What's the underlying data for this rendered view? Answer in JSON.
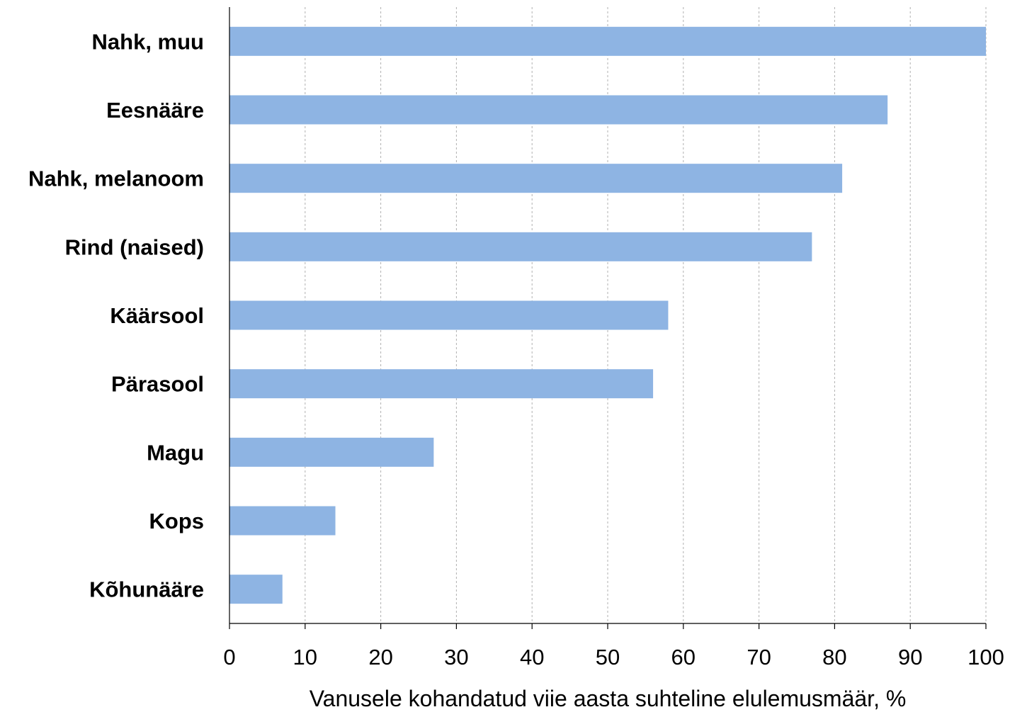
{
  "chart_data": {
    "type": "bar",
    "orientation": "horizontal",
    "categories": [
      "Nahk, muu",
      "Eesnääre",
      "Nahk, melanoom",
      "Rind (naised)",
      "Käärsool",
      "Pärasool",
      "Magu",
      "Kops",
      "Kõhunääre"
    ],
    "values": [
      100,
      87,
      81,
      77,
      58,
      56,
      27,
      14,
      7
    ],
    "xlabel": "Vanusele kohandatud viie aasta suhteline elulemusmäär, %",
    "ylabel": "",
    "xlim": [
      0,
      100
    ],
    "xticks": [
      "0",
      "10",
      "20",
      "30",
      "40",
      "50",
      "60",
      "70",
      "80",
      "90",
      "100"
    ],
    "grid": "vertical dashed",
    "bar_color": "#8eb4e3",
    "legend": "none"
  }
}
